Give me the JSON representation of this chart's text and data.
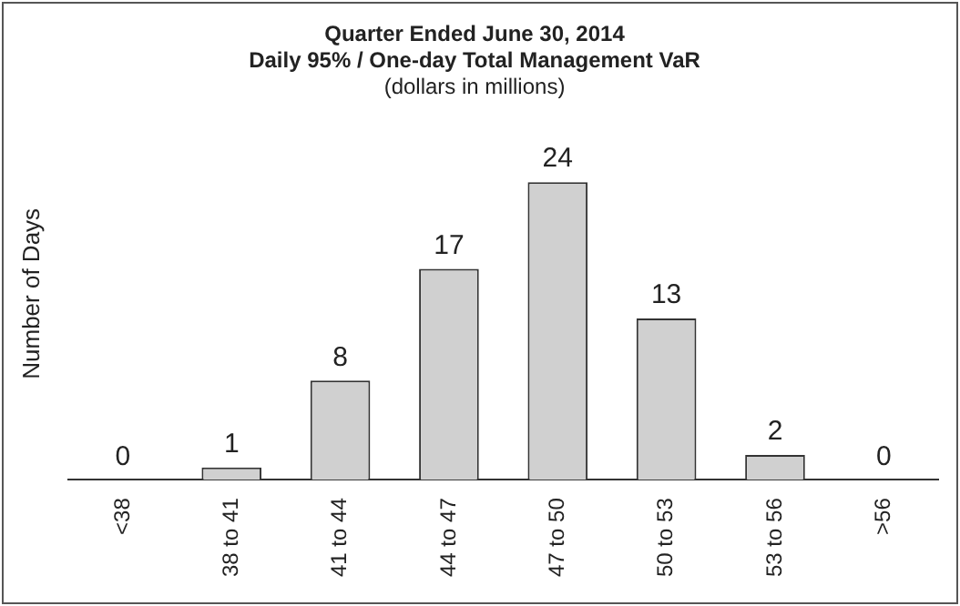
{
  "chart_data": {
    "type": "bar",
    "title": "Quarter Ended June 30, 2014",
    "subtitle": "Daily 95% / One-day Total Management VaR",
    "annotations": [
      "(dollars in millions)"
    ],
    "ylabel": "Number of Days",
    "categories": [
      "<38",
      "38 to 41",
      "41 to 44",
      "44 to 47",
      "47 to 50",
      "50 to 53",
      "53 to 56",
      ">56"
    ],
    "values": [
      0,
      1,
      8,
      17,
      24,
      13,
      2,
      0
    ],
    "color": "#d0d0d0",
    "data_labels": true,
    "grid": false,
    "legend": false
  }
}
